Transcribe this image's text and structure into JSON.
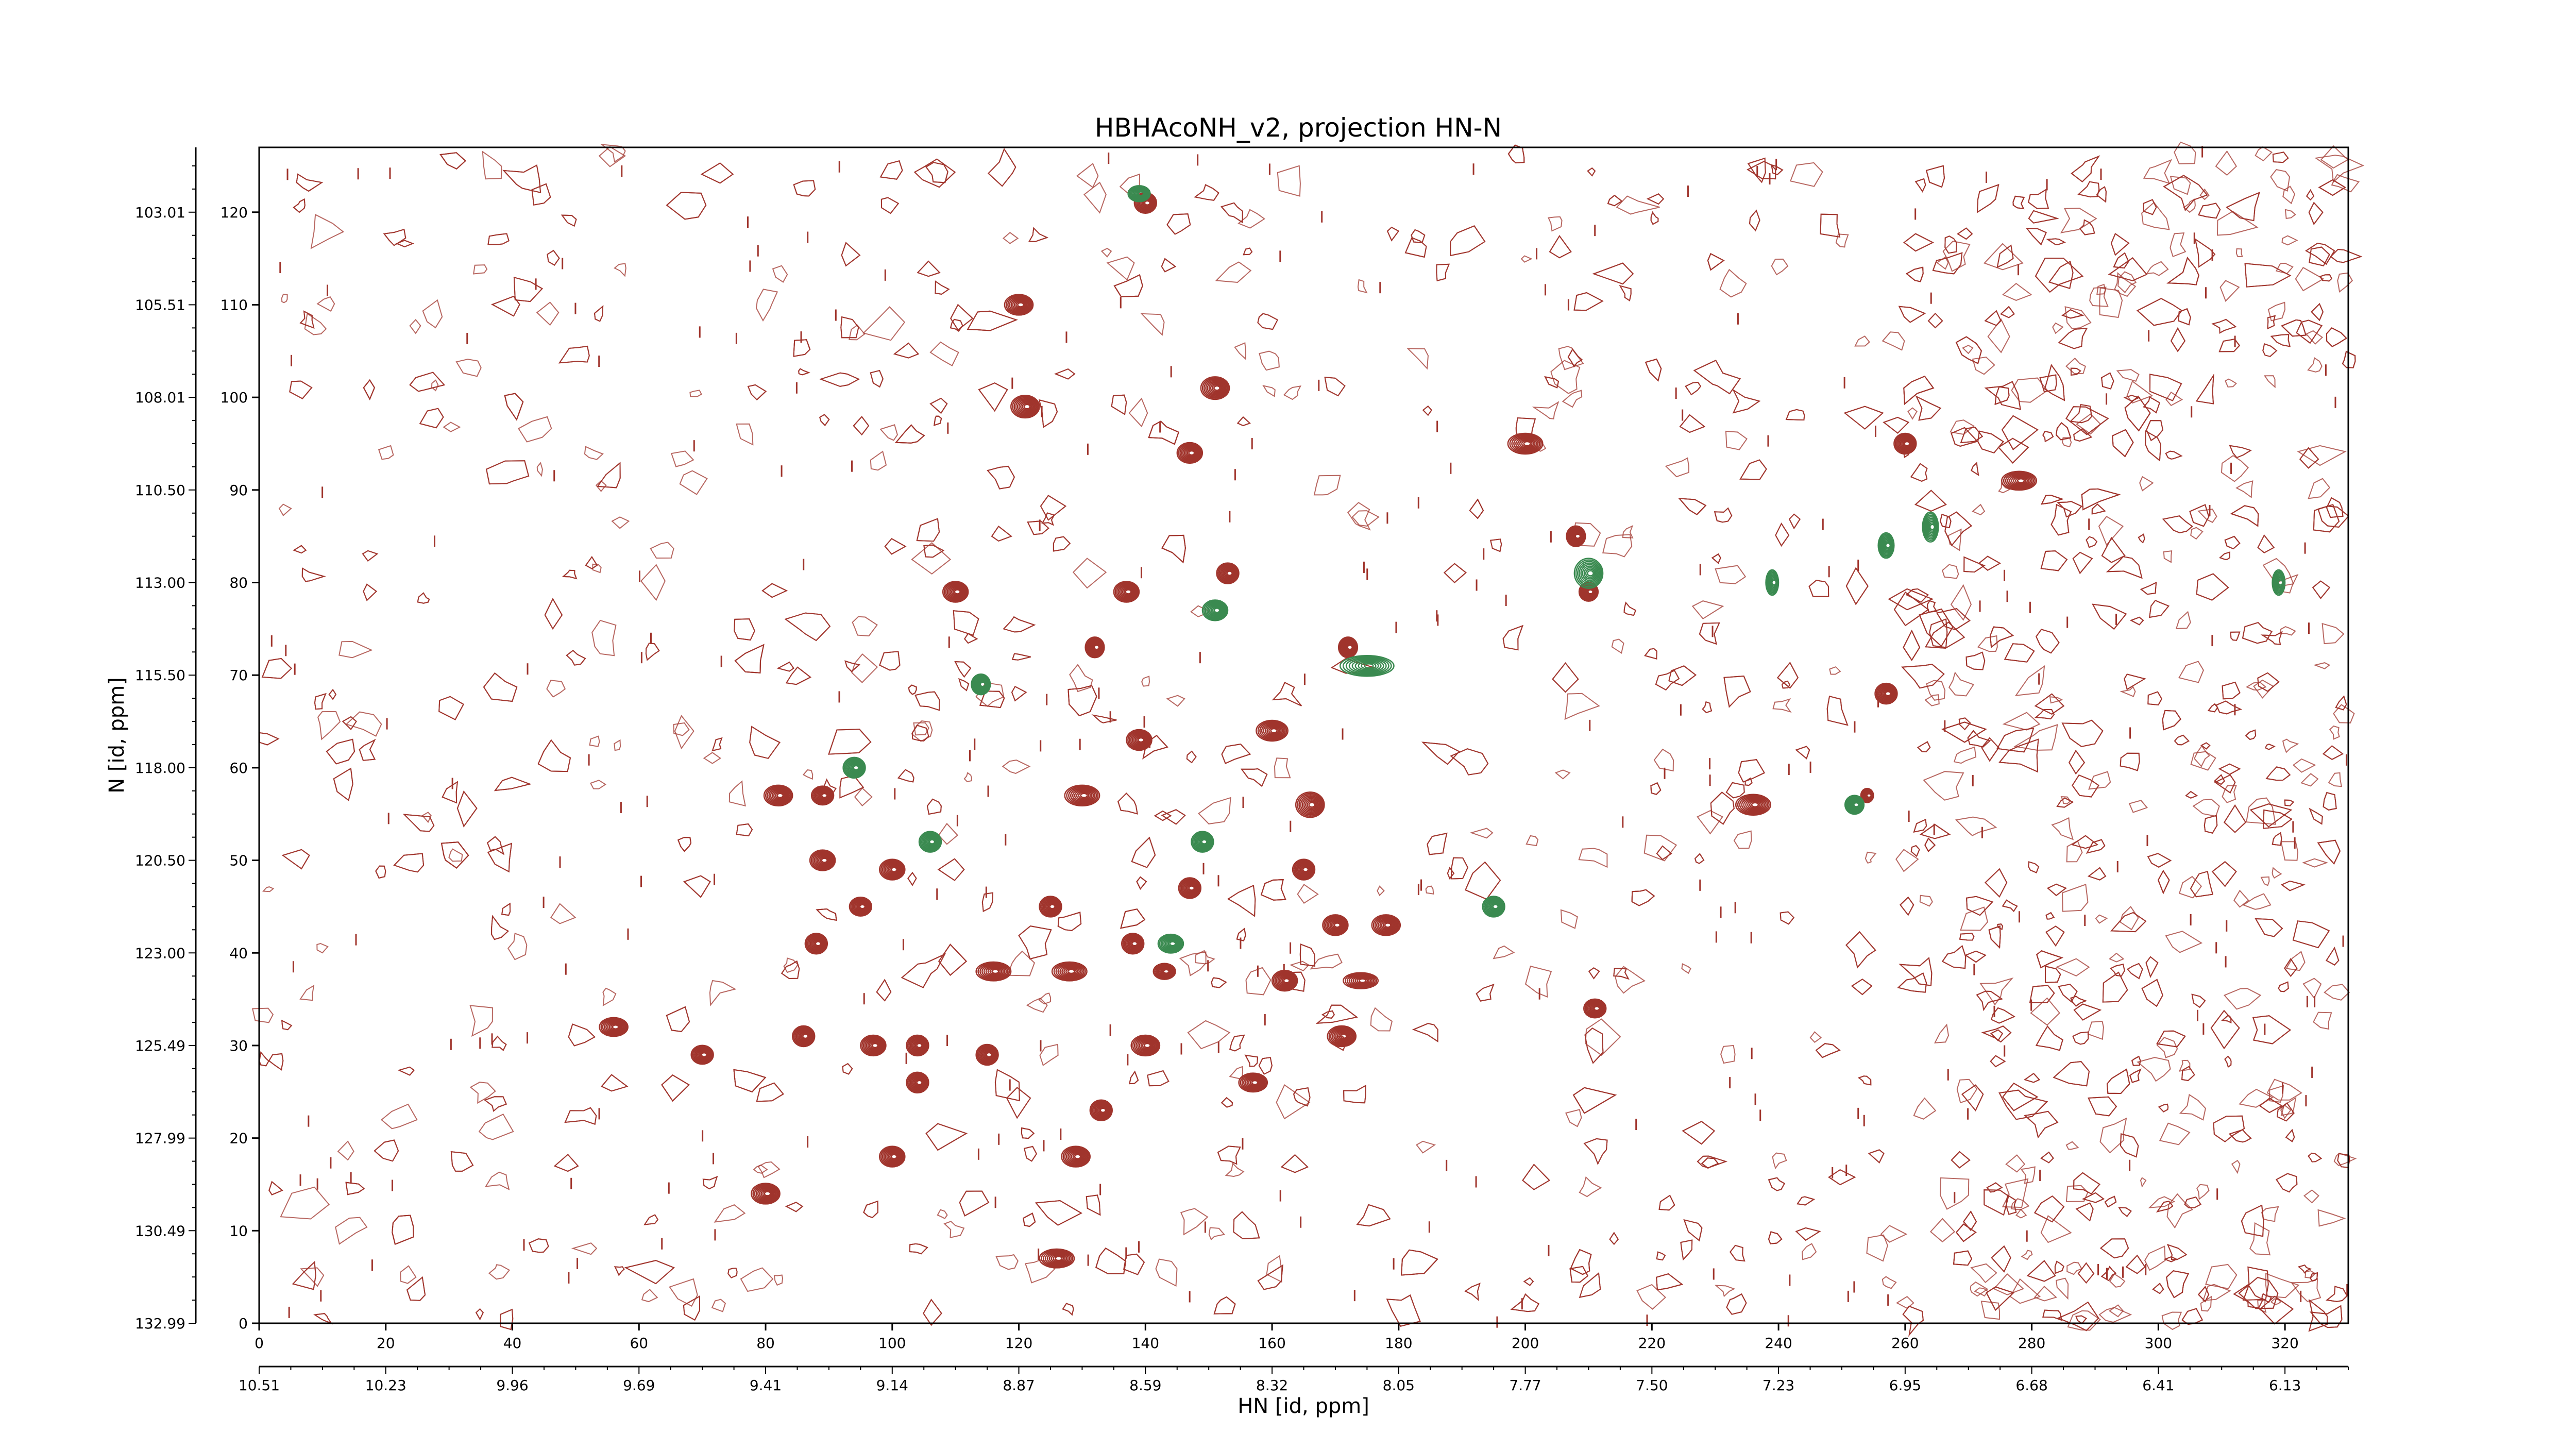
{
  "chart_data": {
    "type": "contour",
    "title": "HBHAcoNH_v2, projection HN-N",
    "xlabel": "HN [id, ppm]",
    "ylabel": "N [id, ppm]",
    "x_index": {
      "range": [
        0,
        330
      ],
      "ticks": [
        0,
        20,
        40,
        60,
        80,
        100,
        120,
        140,
        160,
        180,
        200,
        220,
        240,
        260,
        280,
        300,
        320
      ]
    },
    "y_index": {
      "range": [
        0,
        127
      ],
      "ticks": [
        0,
        10,
        20,
        30,
        40,
        50,
        60,
        70,
        80,
        90,
        100,
        110,
        120
      ]
    },
    "hn_ppm_ticks": [
      {
        "index": 0,
        "label": "10.51"
      },
      {
        "index": 20,
        "label": "10.23"
      },
      {
        "index": 40,
        "label": "9.96"
      },
      {
        "index": 60,
        "label": "9.69"
      },
      {
        "index": 80,
        "label": "9.41"
      },
      {
        "index": 100,
        "label": "9.14"
      },
      {
        "index": 120,
        "label": "8.87"
      },
      {
        "index": 140,
        "label": "8.59"
      },
      {
        "index": 160,
        "label": "8.32"
      },
      {
        "index": 180,
        "label": "8.05"
      },
      {
        "index": 200,
        "label": "7.77"
      },
      {
        "index": 220,
        "label": "7.50"
      },
      {
        "index": 240,
        "label": "7.23"
      },
      {
        "index": 260,
        "label": "6.95"
      },
      {
        "index": 280,
        "label": "6.68"
      },
      {
        "index": 300,
        "label": "6.41"
      },
      {
        "index": 320,
        "label": "6.13"
      }
    ],
    "n_ppm_ticks": [
      {
        "index": 0,
        "label": "132.99"
      },
      {
        "index": 10,
        "label": "130.49"
      },
      {
        "index": 20,
        "label": "127.99"
      },
      {
        "index": 30,
        "label": "125.49"
      },
      {
        "index": 40,
        "label": "123.00"
      },
      {
        "index": 50,
        "label": "120.50"
      },
      {
        "index": 60,
        "label": "118.00"
      },
      {
        "index": 70,
        "label": "115.50"
      },
      {
        "index": 80,
        "label": "113.00"
      },
      {
        "index": 90,
        "label": "110.50"
      },
      {
        "index": 100,
        "label": "108.01"
      },
      {
        "index": 110,
        "label": "105.51"
      },
      {
        "index": 120,
        "label": "103.01"
      }
    ],
    "series": [
      {
        "sign": "positive",
        "color": "#a0342c",
        "peaks": [
          {
            "x": 140,
            "y": 121,
            "w": 3,
            "h": 2
          },
          {
            "x": 120,
            "y": 110,
            "w": 4,
            "h": 2
          },
          {
            "x": 121,
            "y": 99,
            "w": 4,
            "h": 2.2
          },
          {
            "x": 151,
            "y": 101,
            "w": 4,
            "h": 2.2
          },
          {
            "x": 147,
            "y": 94,
            "w": 3.5,
            "h": 2
          },
          {
            "x": 200,
            "y": 95,
            "w": 5,
            "h": 2
          },
          {
            "x": 260,
            "y": 95,
            "w": 3,
            "h": 2
          },
          {
            "x": 278,
            "y": 91,
            "w": 5,
            "h": 1.8
          },
          {
            "x": 208,
            "y": 85,
            "w": 2.5,
            "h": 2
          },
          {
            "x": 153,
            "y": 81,
            "w": 3,
            "h": 2
          },
          {
            "x": 110,
            "y": 79,
            "w": 3.5,
            "h": 2
          },
          {
            "x": 137,
            "y": 79,
            "w": 3.5,
            "h": 2
          },
          {
            "x": 210,
            "y": 79,
            "w": 2.5,
            "h": 1.8
          },
          {
            "x": 132,
            "y": 73,
            "w": 2.5,
            "h": 2
          },
          {
            "x": 172,
            "y": 73,
            "w": 2.5,
            "h": 2
          },
          {
            "x": 257,
            "y": 68,
            "w": 3,
            "h": 2
          },
          {
            "x": 160,
            "y": 64,
            "w": 4.5,
            "h": 2
          },
          {
            "x": 139,
            "y": 63,
            "w": 3.5,
            "h": 2
          },
          {
            "x": 82,
            "y": 57,
            "w": 4,
            "h": 2
          },
          {
            "x": 89,
            "y": 57,
            "w": 3,
            "h": 1.8
          },
          {
            "x": 130,
            "y": 57,
            "w": 5,
            "h": 2
          },
          {
            "x": 166,
            "y": 56,
            "w": 4,
            "h": 2.5
          },
          {
            "x": 236,
            "y": 56,
            "w": 5,
            "h": 2
          },
          {
            "x": 254,
            "y": 57,
            "w": 1.5,
            "h": 1.3
          },
          {
            "x": 89,
            "y": 50,
            "w": 3.5,
            "h": 2
          },
          {
            "x": 100,
            "y": 49,
            "w": 3.5,
            "h": 2
          },
          {
            "x": 165,
            "y": 49,
            "w": 3,
            "h": 2
          },
          {
            "x": 147,
            "y": 47,
            "w": 3,
            "h": 2
          },
          {
            "x": 95,
            "y": 45,
            "w": 3,
            "h": 1.8
          },
          {
            "x": 125,
            "y": 45,
            "w": 3,
            "h": 2
          },
          {
            "x": 170,
            "y": 43,
            "w": 3.5,
            "h": 2
          },
          {
            "x": 178,
            "y": 43,
            "w": 4,
            "h": 2
          },
          {
            "x": 88,
            "y": 41,
            "w": 3,
            "h": 2
          },
          {
            "x": 138,
            "y": 41,
            "w": 3,
            "h": 2
          },
          {
            "x": 116,
            "y": 38,
            "w": 5,
            "h": 1.8
          },
          {
            "x": 128,
            "y": 38,
            "w": 5,
            "h": 1.8
          },
          {
            "x": 143,
            "y": 38,
            "w": 3,
            "h": 1.5
          },
          {
            "x": 162,
            "y": 37,
            "w": 3.5,
            "h": 2
          },
          {
            "x": 174,
            "y": 37,
            "w": 5,
            "h": 1.5
          },
          {
            "x": 211,
            "y": 34,
            "w": 3,
            "h": 1.8
          },
          {
            "x": 56,
            "y": 32,
            "w": 4,
            "h": 1.8
          },
          {
            "x": 86,
            "y": 31,
            "w": 3,
            "h": 2
          },
          {
            "x": 97,
            "y": 30,
            "w": 3.5,
            "h": 2
          },
          {
            "x": 104,
            "y": 30,
            "w": 3,
            "h": 2
          },
          {
            "x": 140,
            "y": 30,
            "w": 4,
            "h": 2
          },
          {
            "x": 171,
            "y": 31,
            "w": 4,
            "h": 2
          },
          {
            "x": 70,
            "y": 29,
            "w": 3,
            "h": 1.8
          },
          {
            "x": 115,
            "y": 29,
            "w": 3,
            "h": 2
          },
          {
            "x": 104,
            "y": 26,
            "w": 3,
            "h": 2
          },
          {
            "x": 157,
            "y": 26,
            "w": 4,
            "h": 1.8
          },
          {
            "x": 133,
            "y": 23,
            "w": 3,
            "h": 2
          },
          {
            "x": 100,
            "y": 18,
            "w": 3.5,
            "h": 2
          },
          {
            "x": 129,
            "y": 18,
            "w": 4,
            "h": 2
          },
          {
            "x": 80,
            "y": 14,
            "w": 4,
            "h": 2
          },
          {
            "x": 126,
            "y": 7,
            "w": 5,
            "h": 1.8
          }
        ]
      },
      {
        "sign": "negative",
        "color": "#3a8a50",
        "peaks": [
          {
            "x": 139,
            "y": 122,
            "w": 3,
            "h": 1.5
          },
          {
            "x": 151,
            "y": 77,
            "w": 3.5,
            "h": 2
          },
          {
            "x": 114,
            "y": 69,
            "w": 2.5,
            "h": 2
          },
          {
            "x": 175,
            "y": 71,
            "w": 8,
            "h": 2
          },
          {
            "x": 210,
            "y": 81,
            "w": 4,
            "h": 3
          },
          {
            "x": 239,
            "y": 80,
            "w": 1.5,
            "h": 2.5
          },
          {
            "x": 257,
            "y": 84,
            "w": 2,
            "h": 2.5
          },
          {
            "x": 264,
            "y": 86,
            "w": 2,
            "h": 3
          },
          {
            "x": 319,
            "y": 80,
            "w": 1.5,
            "h": 2.5
          },
          {
            "x": 94,
            "y": 60,
            "w": 3,
            "h": 2
          },
          {
            "x": 106,
            "y": 52,
            "w": 3,
            "h": 2
          },
          {
            "x": 149,
            "y": 52,
            "w": 3,
            "h": 2
          },
          {
            "x": 195,
            "y": 45,
            "w": 3,
            "h": 2
          },
          {
            "x": 144,
            "y": 41,
            "w": 3.5,
            "h": 1.8
          },
          {
            "x": 252,
            "y": 56,
            "w": 2.5,
            "h": 1.8
          }
        ]
      }
    ]
  }
}
